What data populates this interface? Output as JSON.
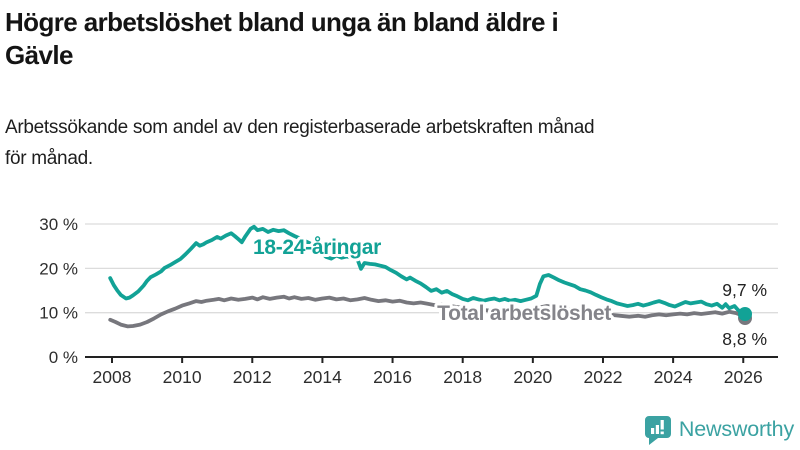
{
  "header": {
    "title_line1": "Högre arbetslöshet bland unga än bland äldre i",
    "title_line2": "Gävle",
    "subtitle_line1": "Arbetssökande som andel av den registerbaserade arbetskraften månad",
    "subtitle_line2": "för månad."
  },
  "branding": {
    "logo_text": "Newsworthy",
    "logo_color": "#3BA2A2",
    "logo_icon": "bar-chart-speech-bubble-icon"
  },
  "chart_data": {
    "type": "line",
    "title": "Högre arbetslöshet bland unga än bland äldre i Gävle",
    "subtitle": "Arbetssökande som andel av den registerbaserade arbetskraften månad för månad.",
    "xlabel": "",
    "ylabel": "",
    "grid": "horizontal",
    "legend_position": "inline-labels",
    "xlim": [
      2007.6,
      2026.6
    ],
    "ylim": [
      0,
      32
    ],
    "x_ticks": [
      2008,
      2010,
      2012,
      2014,
      2016,
      2018,
      2020,
      2022,
      2024,
      2026
    ],
    "x_tick_labels": [
      "2008",
      "2010",
      "2012",
      "2014",
      "2016",
      "2018",
      "2020",
      "2022",
      "2024",
      "2026"
    ],
    "y_ticks": [
      0,
      10,
      20,
      30
    ],
    "y_tick_labels": [
      "0 %",
      "10 %",
      "20 %",
      "30 %"
    ],
    "axis_color": "#222222",
    "grid_color": "#dcdcdc",
    "tick_label_color": "#2e2e2e",
    "end_label_color": "#222222",
    "series": [
      {
        "name": "Total arbetslöshet",
        "color": "#77777D",
        "label": {
          "text": "Total arbetslöshet",
          "color": "#84848A",
          "anchor_year": 2017.27,
          "anchor_value": 8.3
        },
        "end_label": "8,8 %",
        "end_value": 8.8,
        "points": [
          [
            2007.95,
            8.4
          ],
          [
            2008.1,
            7.9
          ],
          [
            2008.25,
            7.3
          ],
          [
            2008.45,
            6.9
          ],
          [
            2008.6,
            7.0
          ],
          [
            2008.8,
            7.3
          ],
          [
            2009.0,
            7.9
          ],
          [
            2009.2,
            8.7
          ],
          [
            2009.4,
            9.6
          ],
          [
            2009.6,
            10.3
          ],
          [
            2009.8,
            10.9
          ],
          [
            2010.0,
            11.6
          ],
          [
            2010.2,
            12.1
          ],
          [
            2010.4,
            12.6
          ],
          [
            2010.55,
            12.4
          ],
          [
            2010.7,
            12.7
          ],
          [
            2010.9,
            12.9
          ],
          [
            2011.05,
            13.1
          ],
          [
            2011.2,
            12.8
          ],
          [
            2011.4,
            13.2
          ],
          [
            2011.6,
            12.9
          ],
          [
            2011.8,
            13.1
          ],
          [
            2012.0,
            13.4
          ],
          [
            2012.15,
            13.0
          ],
          [
            2012.3,
            13.5
          ],
          [
            2012.5,
            13.1
          ],
          [
            2012.7,
            13.4
          ],
          [
            2012.9,
            13.6
          ],
          [
            2013.05,
            13.2
          ],
          [
            2013.2,
            13.5
          ],
          [
            2013.4,
            13.1
          ],
          [
            2013.6,
            13.3
          ],
          [
            2013.8,
            12.9
          ],
          [
            2014.0,
            13.2
          ],
          [
            2014.2,
            13.4
          ],
          [
            2014.4,
            13.0
          ],
          [
            2014.6,
            13.2
          ],
          [
            2014.8,
            12.8
          ],
          [
            2015.0,
            13.0
          ],
          [
            2015.2,
            13.3
          ],
          [
            2015.4,
            12.9
          ],
          [
            2015.6,
            12.6
          ],
          [
            2015.8,
            12.8
          ],
          [
            2016.0,
            12.5
          ],
          [
            2016.2,
            12.7
          ],
          [
            2016.4,
            12.3
          ],
          [
            2016.6,
            12.1
          ],
          [
            2016.8,
            12.3
          ],
          [
            2017.0,
            12.0
          ],
          [
            2017.2,
            11.7
          ],
          [
            2017.4,
            11.9
          ],
          [
            2017.6,
            11.6
          ],
          [
            2017.8,
            11.3
          ],
          [
            2018.0,
            11.1
          ],
          [
            2018.25,
            10.9
          ],
          [
            2018.5,
            10.7
          ],
          [
            2018.75,
            10.5
          ],
          [
            2019.0,
            10.3
          ],
          [
            2019.25,
            10.1
          ],
          [
            2019.5,
            10.2
          ],
          [
            2019.75,
            10.4
          ],
          [
            2020.0,
            10.7
          ],
          [
            2020.2,
            11.2
          ],
          [
            2020.4,
            11.5
          ],
          [
            2020.6,
            11.3
          ],
          [
            2020.8,
            11.1
          ],
          [
            2021.0,
            10.9
          ],
          [
            2021.25,
            10.6
          ],
          [
            2021.5,
            10.3
          ],
          [
            2021.75,
            10.0
          ],
          [
            2022.0,
            9.8
          ],
          [
            2022.25,
            9.5
          ],
          [
            2022.5,
            9.3
          ],
          [
            2022.75,
            9.1
          ],
          [
            2023.0,
            9.3
          ],
          [
            2023.2,
            9.1
          ],
          [
            2023.4,
            9.4
          ],
          [
            2023.6,
            9.6
          ],
          [
            2023.8,
            9.4
          ],
          [
            2024.0,
            9.6
          ],
          [
            2024.2,
            9.8
          ],
          [
            2024.4,
            9.6
          ],
          [
            2024.6,
            9.9
          ],
          [
            2024.8,
            9.7
          ],
          [
            2025.0,
            9.9
          ],
          [
            2025.2,
            10.1
          ],
          [
            2025.4,
            9.8
          ],
          [
            2025.6,
            10.2
          ],
          [
            2025.8,
            9.9
          ],
          [
            2025.95,
            9.4
          ],
          [
            2026.05,
            8.8
          ]
        ]
      },
      {
        "name": "18-24-åringar",
        "color": "#12A296",
        "label": {
          "text": "18-24-åringar",
          "color": "#12A296",
          "anchor_year": 2012.02,
          "anchor_value": 23.2
        },
        "end_label": "9,7 %",
        "end_value": 9.7,
        "points": [
          [
            2007.95,
            17.8
          ],
          [
            2008.05,
            16.2
          ],
          [
            2008.15,
            15.0
          ],
          [
            2008.25,
            14.0
          ],
          [
            2008.4,
            13.2
          ],
          [
            2008.5,
            13.4
          ],
          [
            2008.6,
            13.9
          ],
          [
            2008.75,
            14.8
          ],
          [
            2008.9,
            16.1
          ],
          [
            2009.0,
            17.2
          ],
          [
            2009.1,
            18.0
          ],
          [
            2009.25,
            18.6
          ],
          [
            2009.4,
            19.3
          ],
          [
            2009.5,
            20.1
          ],
          [
            2009.65,
            20.7
          ],
          [
            2009.8,
            21.4
          ],
          [
            2009.95,
            22.1
          ],
          [
            2010.1,
            23.2
          ],
          [
            2010.25,
            24.4
          ],
          [
            2010.4,
            25.7
          ],
          [
            2010.5,
            25.1
          ],
          [
            2010.6,
            25.4
          ],
          [
            2010.7,
            25.9
          ],
          [
            2010.85,
            26.4
          ],
          [
            2011.0,
            27.1
          ],
          [
            2011.1,
            26.7
          ],
          [
            2011.25,
            27.4
          ],
          [
            2011.4,
            27.9
          ],
          [
            2011.5,
            27.3
          ],
          [
            2011.6,
            26.6
          ],
          [
            2011.7,
            25.9
          ],
          [
            2011.8,
            27.2
          ],
          [
            2011.95,
            28.9
          ],
          [
            2012.05,
            29.4
          ],
          [
            2012.15,
            28.6
          ],
          [
            2012.3,
            28.9
          ],
          [
            2012.45,
            28.2
          ],
          [
            2012.6,
            28.7
          ],
          [
            2012.75,
            28.4
          ],
          [
            2012.9,
            28.6
          ],
          [
            2013.05,
            27.9
          ],
          [
            2013.2,
            27.3
          ],
          [
            2013.35,
            26.8
          ],
          [
            2013.5,
            26.2
          ],
          [
            2013.65,
            25.6
          ],
          [
            2013.8,
            24.8
          ],
          [
            2013.95,
            23.7
          ],
          [
            2014.1,
            22.6
          ],
          [
            2014.25,
            22.2
          ],
          [
            2014.4,
            22.9
          ],
          [
            2014.55,
            22.4
          ],
          [
            2014.7,
            22.7
          ],
          [
            2014.85,
            22.3
          ],
          [
            2015.0,
            22.0
          ],
          [
            2015.1,
            19.9
          ],
          [
            2015.2,
            21.2
          ],
          [
            2015.35,
            21.0
          ],
          [
            2015.5,
            20.9
          ],
          [
            2015.65,
            20.6
          ],
          [
            2015.8,
            20.3
          ],
          [
            2015.95,
            19.6
          ],
          [
            2016.1,
            19.0
          ],
          [
            2016.25,
            18.2
          ],
          [
            2016.4,
            17.5
          ],
          [
            2016.5,
            17.9
          ],
          [
            2016.65,
            17.2
          ],
          [
            2016.8,
            16.6
          ],
          [
            2016.95,
            15.8
          ],
          [
            2017.1,
            14.9
          ],
          [
            2017.25,
            15.3
          ],
          [
            2017.4,
            14.5
          ],
          [
            2017.55,
            14.9
          ],
          [
            2017.7,
            14.2
          ],
          [
            2017.85,
            13.7
          ],
          [
            2018.0,
            13.1
          ],
          [
            2018.15,
            12.8
          ],
          [
            2018.3,
            13.3
          ],
          [
            2018.45,
            13.0
          ],
          [
            2018.6,
            12.7
          ],
          [
            2018.75,
            13.0
          ],
          [
            2018.9,
            13.2
          ],
          [
            2019.05,
            12.8
          ],
          [
            2019.2,
            13.1
          ],
          [
            2019.35,
            12.7
          ],
          [
            2019.5,
            12.9
          ],
          [
            2019.65,
            12.6
          ],
          [
            2019.8,
            12.9
          ],
          [
            2019.95,
            13.2
          ],
          [
            2020.1,
            13.8
          ],
          [
            2020.2,
            16.5
          ],
          [
            2020.3,
            18.2
          ],
          [
            2020.45,
            18.5
          ],
          [
            2020.6,
            17.9
          ],
          [
            2020.75,
            17.3
          ],
          [
            2020.9,
            16.8
          ],
          [
            2021.05,
            16.4
          ],
          [
            2021.2,
            16.0
          ],
          [
            2021.35,
            15.3
          ],
          [
            2021.5,
            15.0
          ],
          [
            2021.65,
            14.6
          ],
          [
            2021.8,
            14.0
          ],
          [
            2021.95,
            13.5
          ],
          [
            2022.1,
            13.0
          ],
          [
            2022.25,
            12.6
          ],
          [
            2022.4,
            12.1
          ],
          [
            2022.55,
            11.8
          ],
          [
            2022.7,
            11.5
          ],
          [
            2022.85,
            11.7
          ],
          [
            2023.0,
            12.0
          ],
          [
            2023.15,
            11.6
          ],
          [
            2023.3,
            11.9
          ],
          [
            2023.45,
            12.3
          ],
          [
            2023.6,
            12.6
          ],
          [
            2023.75,
            12.2
          ],
          [
            2023.9,
            11.7
          ],
          [
            2024.05,
            11.4
          ],
          [
            2024.2,
            11.9
          ],
          [
            2024.35,
            12.4
          ],
          [
            2024.5,
            12.1
          ],
          [
            2024.65,
            12.3
          ],
          [
            2024.8,
            12.5
          ],
          [
            2024.95,
            11.9
          ],
          [
            2025.1,
            11.6
          ],
          [
            2025.25,
            12.0
          ],
          [
            2025.4,
            11.1
          ],
          [
            2025.5,
            11.9
          ],
          [
            2025.6,
            11.0
          ],
          [
            2025.75,
            11.5
          ],
          [
            2025.85,
            10.6
          ],
          [
            2026.05,
            9.7
          ]
        ]
      }
    ]
  }
}
